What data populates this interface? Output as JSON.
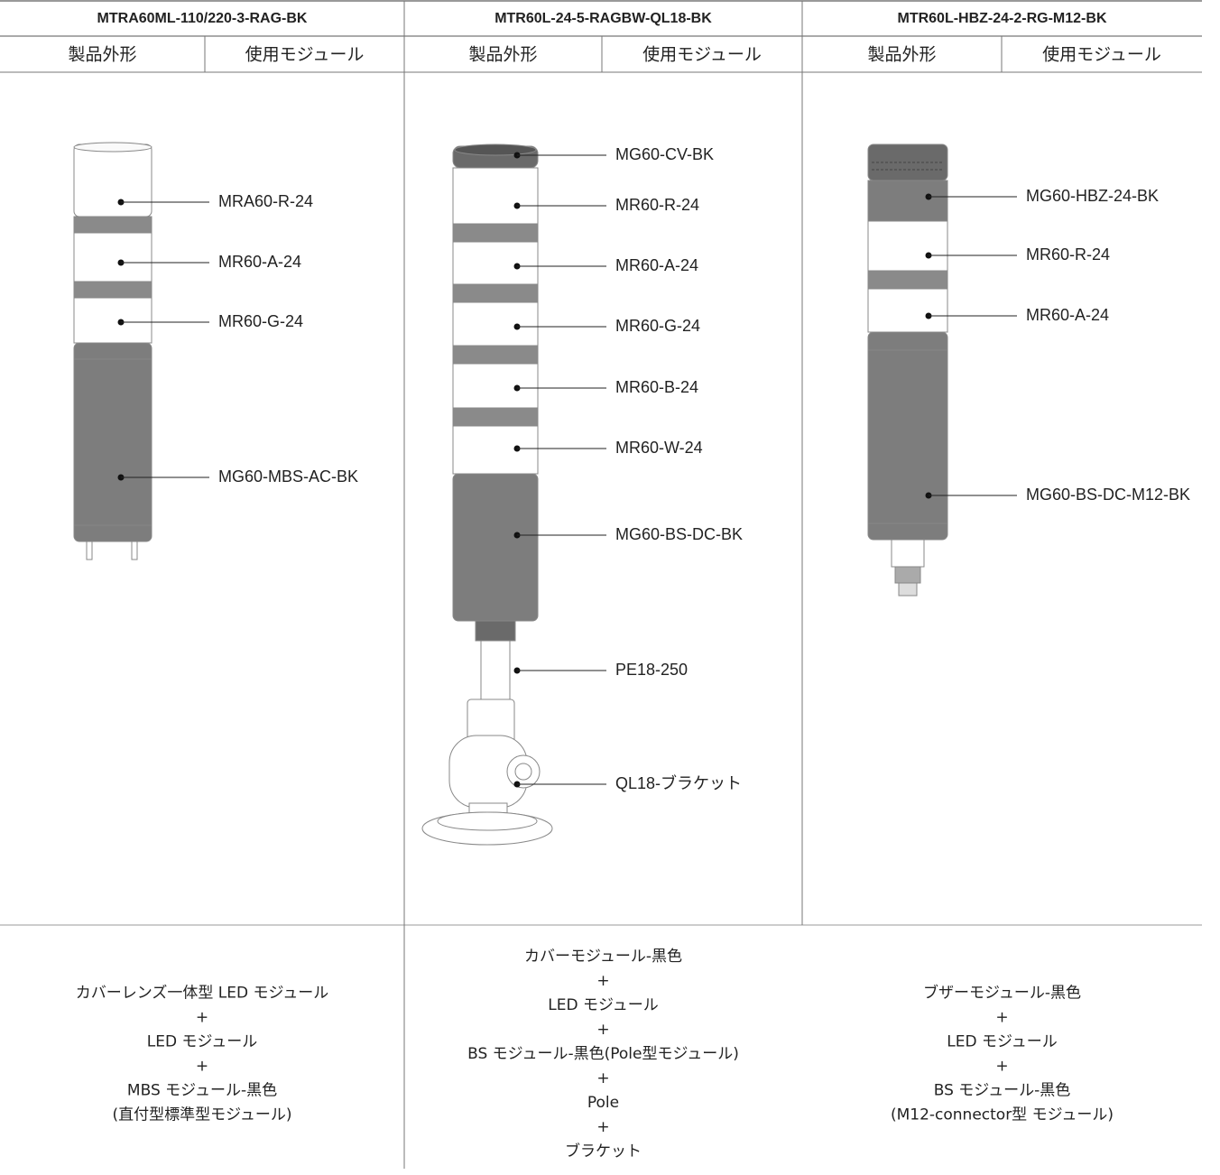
{
  "columns": [
    {
      "title": "MTRA60ML-110/220-3-RAG-BK",
      "subheaders": [
        "製品外形",
        "使用モジュール"
      ],
      "labels": [
        "MRA60-R-24",
        "MR60-A-24",
        "MR60-G-24",
        "MG60-MBS-AC-BK"
      ],
      "description": [
        "カバーレンズ一体型 LED モジュール",
        "+",
        "LED モジュール",
        "+",
        "MBS モジュール-黒色",
        "(直付型標準型モジュール)"
      ]
    },
    {
      "title": "MTR60L-24-5-RAGBW-QL18-BK",
      "subheaders": [
        "製品外形",
        "使用モジュール"
      ],
      "labels": [
        "MG60-CV-BK",
        "MR60-R-24",
        "MR60-A-24",
        "MR60-G-24",
        "MR60-B-24",
        "MR60-W-24",
        "MG60-BS-DC-BK",
        "PE18-250",
        "QL18-ブラケット"
      ],
      "description": [
        "カバーモジュール-黒色",
        "+",
        "LED モジュール",
        "+",
        "BS モジュール-黒色(Pole型モジュール)",
        "+",
        "Pole",
        "+",
        "ブラケット"
      ]
    },
    {
      "title": "MTR60L-HBZ-24-2-RG-M12-BK",
      "subheaders": [
        "製品外形",
        "使用モジュール"
      ],
      "labels": [
        "MG60-HBZ-24-BK",
        "MR60-R-24",
        "MR60-A-24",
        "MG60-BS-DC-M12-BK"
      ],
      "description": [
        "ブザーモジュール-黒色",
        "+",
        "LED モジュール",
        "+",
        "BS モジュール-黒色",
        "(M12-connector型 モジュール)"
      ]
    }
  ]
}
